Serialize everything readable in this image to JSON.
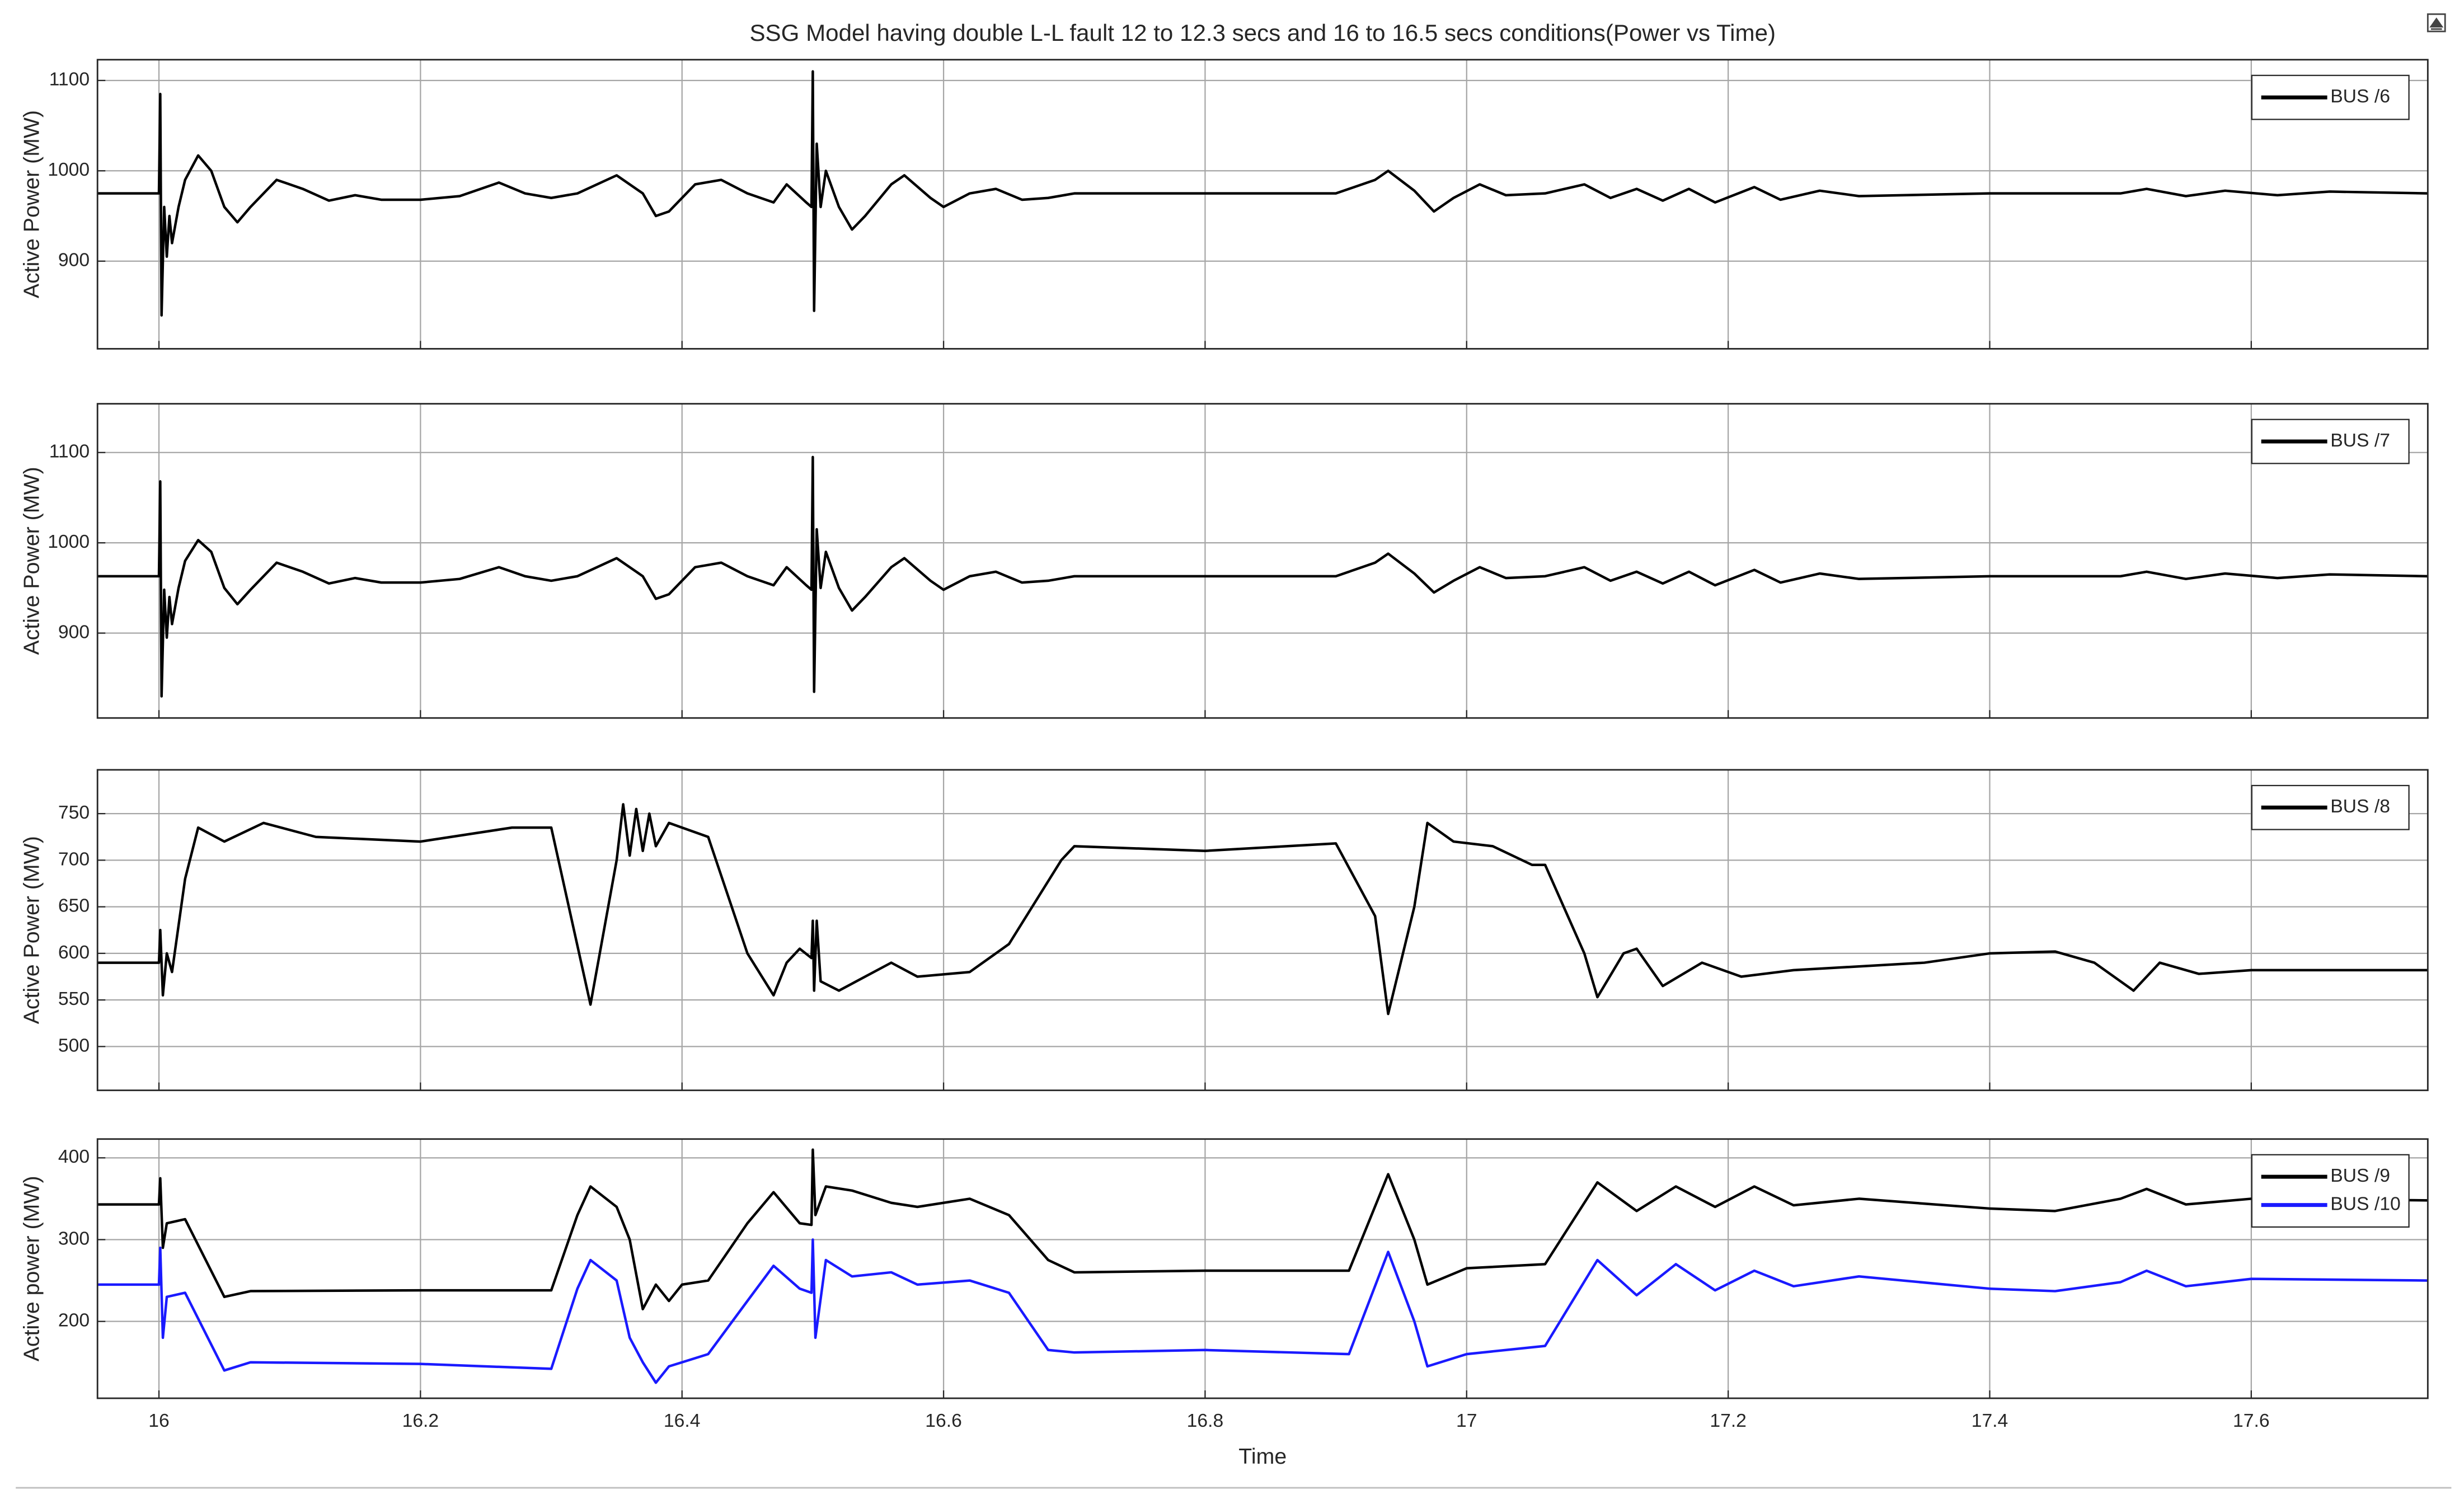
{
  "chart_data": [
    {
      "type": "line",
      "title": "SSG Model having double L-L fault 12 to 12.3 secs and 16 to 16.5 secs conditions(Power vs Time)",
      "ylabel": "Active Power (MW)",
      "grid": true,
      "legend": "upper right",
      "xlim": [
        15.953,
        17.735
      ],
      "xticks": [
        16,
        16.2,
        16.4,
        16.6,
        16.8,
        17,
        17.2,
        17.4,
        17.6
      ],
      "ylim": [
        803,
        1123
      ],
      "yticks": [
        900,
        1000,
        1100
      ],
      "x": [
        15.953,
        16.0,
        16.001,
        16.002,
        16.004,
        16.006,
        16.008,
        16.01,
        16.015,
        16.02,
        16.03,
        16.04,
        16.05,
        16.06,
        16.07,
        16.09,
        16.11,
        16.13,
        16.15,
        16.17,
        16.2,
        16.23,
        16.26,
        16.28,
        16.3,
        16.32,
        16.35,
        16.37,
        16.38,
        16.39,
        16.41,
        16.43,
        16.45,
        16.47,
        16.48,
        16.495,
        16.499,
        16.5,
        16.501,
        16.503,
        16.506,
        16.51,
        16.52,
        16.53,
        16.54,
        16.56,
        16.57,
        16.59,
        16.6,
        16.62,
        16.64,
        16.66,
        16.68,
        16.7,
        16.8,
        16.9,
        16.93,
        16.94,
        16.96,
        16.975,
        16.99,
        17.01,
        17.03,
        17.06,
        17.09,
        17.11,
        17.13,
        17.15,
        17.17,
        17.19,
        17.22,
        17.24,
        17.27,
        17.3,
        17.4,
        17.5,
        17.52,
        17.55,
        17.58,
        17.62,
        17.66,
        17.735
      ],
      "series": [
        {
          "name": "BUS /6",
          "color": "#000000",
          "values": [
            975,
            975,
            1085,
            840,
            960,
            905,
            950,
            920,
            960,
            990,
            1017,
            1000,
            960,
            943,
            960,
            990,
            980,
            967,
            973,
            968,
            968,
            972,
            987,
            975,
            970,
            975,
            995,
            975,
            950,
            955,
            985,
            990,
            975,
            965,
            985,
            965,
            960,
            1110,
            845,
            1030,
            960,
            1000,
            960,
            935,
            950,
            985,
            995,
            970,
            960,
            975,
            980,
            968,
            970,
            975,
            975,
            975,
            990,
            1000,
            978,
            955,
            970,
            985,
            973,
            975,
            985,
            970,
            980,
            967,
            980,
            965,
            982,
            968,
            978,
            972,
            975,
            975,
            980,
            972,
            978,
            973,
            977,
            975
          ]
        }
      ]
    },
    {
      "type": "line",
      "ylabel": "Active Power (MW)",
      "grid": true,
      "legend": "upper right",
      "xlim": [
        15.953,
        17.735
      ],
      "xticks": [
        16,
        16.2,
        16.4,
        16.6,
        16.8,
        17,
        17.2,
        17.4,
        17.6
      ],
      "ylim": [
        806,
        1154
      ],
      "yticks": [
        900,
        1000,
        1100
      ],
      "x": [
        15.953,
        16.0,
        16.001,
        16.002,
        16.004,
        16.006,
        16.008,
        16.01,
        16.015,
        16.02,
        16.03,
        16.04,
        16.05,
        16.06,
        16.07,
        16.09,
        16.11,
        16.13,
        16.15,
        16.17,
        16.2,
        16.23,
        16.26,
        16.28,
        16.3,
        16.32,
        16.35,
        16.37,
        16.38,
        16.39,
        16.41,
        16.43,
        16.45,
        16.47,
        16.48,
        16.495,
        16.499,
        16.5,
        16.501,
        16.503,
        16.506,
        16.51,
        16.52,
        16.53,
        16.54,
        16.56,
        16.57,
        16.59,
        16.6,
        16.62,
        16.64,
        16.66,
        16.68,
        16.7,
        16.8,
        16.9,
        16.93,
        16.94,
        16.96,
        16.975,
        16.99,
        17.01,
        17.03,
        17.06,
        17.09,
        17.11,
        17.13,
        17.15,
        17.17,
        17.19,
        17.22,
        17.24,
        17.27,
        17.3,
        17.4,
        17.5,
        17.52,
        17.55,
        17.58,
        17.62,
        17.66,
        17.735
      ],
      "series": [
        {
          "name": "BUS /7",
          "color": "#000000",
          "values": [
            963,
            963,
            1068,
            830,
            948,
            895,
            940,
            910,
            950,
            980,
            1003,
            990,
            950,
            932,
            948,
            978,
            968,
            955,
            961,
            956,
            956,
            960,
            973,
            963,
            958,
            963,
            983,
            963,
            938,
            943,
            973,
            978,
            963,
            953,
            973,
            953,
            948,
            1095,
            835,
            1015,
            950,
            990,
            950,
            925,
            940,
            973,
            983,
            958,
            948,
            963,
            968,
            956,
            958,
            963,
            963,
            963,
            978,
            988,
            966,
            945,
            958,
            973,
            961,
            963,
            973,
            958,
            968,
            955,
            968,
            953,
            970,
            956,
            966,
            960,
            963,
            963,
            968,
            960,
            966,
            961,
            965,
            963
          ]
        }
      ]
    },
    {
      "type": "line",
      "ylabel": "Active Power (MW)",
      "grid": true,
      "legend": "upper right",
      "xlim": [
        15.953,
        17.735
      ],
      "xticks": [
        16,
        16.2,
        16.4,
        16.6,
        16.8,
        17,
        17.2,
        17.4,
        17.6
      ],
      "ylim": [
        453,
        797
      ],
      "yticks": [
        500,
        550,
        600,
        650,
        700,
        750
      ],
      "x": [
        15.953,
        16.0,
        16.001,
        16.003,
        16.006,
        16.01,
        16.02,
        16.03,
        16.05,
        16.08,
        16.12,
        16.2,
        16.27,
        16.3,
        16.33,
        16.35,
        16.355,
        16.36,
        16.365,
        16.37,
        16.375,
        16.38,
        16.39,
        16.4,
        16.42,
        16.45,
        16.47,
        16.48,
        16.49,
        16.499,
        16.5,
        16.501,
        16.503,
        16.506,
        16.52,
        16.56,
        16.58,
        16.62,
        16.65,
        16.69,
        16.7,
        16.8,
        16.9,
        16.93,
        16.94,
        16.96,
        16.97,
        16.99,
        17.02,
        17.05,
        17.06,
        17.09,
        17.1,
        17.12,
        17.13,
        17.15,
        17.18,
        17.21,
        17.25,
        17.35,
        17.4,
        17.45,
        17.48,
        17.51,
        17.53,
        17.56,
        17.6,
        17.735
      ],
      "series": [
        {
          "name": "BUS /8",
          "color": "#000000",
          "values": [
            590,
            590,
            625,
            555,
            600,
            580,
            680,
            735,
            720,
            740,
            725,
            720,
            735,
            735,
            545,
            700,
            760,
            705,
            755,
            710,
            750,
            715,
            740,
            735,
            725,
            600,
            555,
            590,
            605,
            595,
            635,
            560,
            635,
            570,
            560,
            590,
            575,
            580,
            610,
            700,
            715,
            710,
            718,
            640,
            535,
            650,
            740,
            720,
            715,
            695,
            695,
            600,
            553,
            600,
            605,
            565,
            590,
            575,
            582,
            590,
            600,
            602,
            590,
            560,
            590,
            578,
            582,
            582
          ]
        }
      ]
    },
    {
      "type": "line",
      "ylabel": "Active power (MW)",
      "xlabel": "Time",
      "grid": true,
      "legend": "upper right",
      "xlim": [
        15.953,
        17.735
      ],
      "xticks": [
        16,
        16.2,
        16.4,
        16.6,
        16.8,
        17,
        17.2,
        17.4,
        17.6
      ],
      "ylim": [
        106,
        423
      ],
      "yticks": [
        200,
        300,
        400
      ],
      "x": [
        15.953,
        16.0,
        16.001,
        16.003,
        16.006,
        16.02,
        16.05,
        16.07,
        16.2,
        16.3,
        16.32,
        16.33,
        16.35,
        16.36,
        16.37,
        16.38,
        16.39,
        16.4,
        16.42,
        16.45,
        16.47,
        16.49,
        16.499,
        16.5,
        16.502,
        16.51,
        16.53,
        16.56,
        16.58,
        16.62,
        16.65,
        16.68,
        16.7,
        16.8,
        16.91,
        16.94,
        16.96,
        16.97,
        17.0,
        17.06,
        17.1,
        17.13,
        17.16,
        17.19,
        17.22,
        17.25,
        17.3,
        17.4,
        17.45,
        17.5,
        17.52,
        17.55,
        17.6,
        17.735
      ],
      "series": [
        {
          "name": "BUS /9",
          "color": "#000000",
          "values": [
            343,
            343,
            375,
            290,
            320,
            325,
            230,
            237,
            238,
            238,
            330,
            365,
            340,
            300,
            215,
            245,
            225,
            245,
            250,
            320,
            358,
            320,
            318,
            410,
            330,
            365,
            360,
            345,
            340,
            350,
            330,
            275,
            260,
            262,
            262,
            380,
            300,
            245,
            265,
            270,
            370,
            335,
            365,
            340,
            365,
            342,
            350,
            338,
            335,
            350,
            362,
            343,
            350,
            348
          ]
        },
        {
          "name": "BUS /10",
          "color": "#1a1aff",
          "values": [
            245,
            245,
            290,
            180,
            230,
            235,
            140,
            150,
            148,
            142,
            240,
            275,
            250,
            180,
            150,
            125,
            145,
            150,
            160,
            225,
            268,
            240,
            235,
            300,
            180,
            275,
            255,
            260,
            245,
            250,
            235,
            165,
            162,
            165,
            160,
            285,
            200,
            145,
            160,
            170,
            275,
            232,
            270,
            238,
            262,
            243,
            255,
            240,
            237,
            248,
            262,
            243,
            252,
            250
          ]
        }
      ]
    }
  ]
}
